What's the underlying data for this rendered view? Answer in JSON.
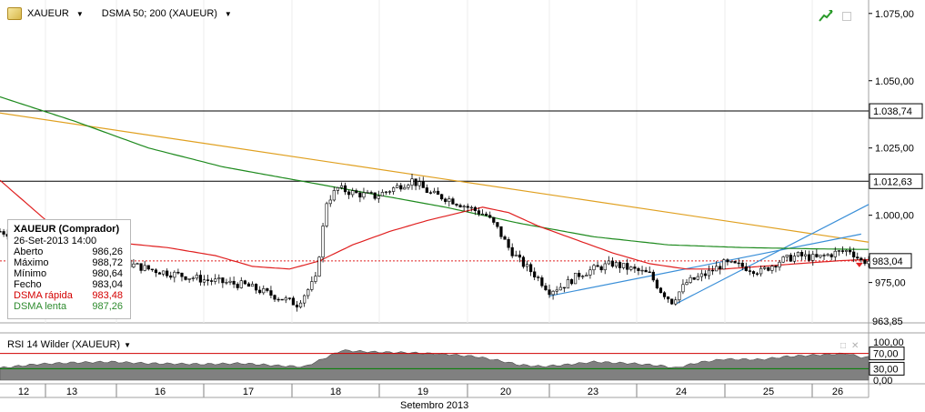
{
  "header": {
    "symbol": "XAUEUR",
    "indicator": "DSMA 50; 200 (XAUEUR)"
  },
  "info_box": {
    "title": "XAUEUR (Comprador)",
    "datetime": "26-Set-2013 14:00",
    "rows": [
      {
        "label": "Aberto",
        "value": "986,26"
      },
      {
        "label": "Máximo",
        "value": "988,72"
      },
      {
        "label": "Mínimo",
        "value": "980,64"
      },
      {
        "label": "Fecho",
        "value": "983,04"
      },
      {
        "label": "DSMA rápida",
        "value": "983,48"
      },
      {
        "label": "DSMA lenta",
        "value": "987,26"
      }
    ]
  },
  "rsi": {
    "label": "RSI 14 Wilder (XAUEUR)"
  },
  "colors": {
    "up_candle": "#ffffff",
    "down_candle": "#000000",
    "dsma_fast": "#e02020",
    "dsma_slow": "#1e8a1e",
    "trend_orange": "#e0a020",
    "trend_blue": "#3a8fd8",
    "rsi_fill": "#808080",
    "rsi_high_line": "#d00000",
    "rsi_low_line": "#008000"
  },
  "chart_data": {
    "type": "candlestick",
    "x_axis": {
      "day_labels": [
        "12",
        "13",
        "16",
        "17",
        "18",
        "19",
        "20",
        "23",
        "24",
        "25",
        "26"
      ],
      "month_label": "Setembro 2013"
    },
    "price_axis": {
      "ticks": [
        "1.075,00",
        "1.050,00",
        "1.025,00",
        "1.000,00",
        "975,00"
      ],
      "ylim": [
        960,
        1080
      ],
      "level_lines": [
        {
          "label": "1.038,74",
          "value": 1038.74
        },
        {
          "label": "1.012,63",
          "value": 1012.63
        }
      ],
      "last_price": {
        "label": "983,04",
        "value": 983.04
      },
      "bottom_label": {
        "label": "963,85",
        "value": 963.85
      }
    },
    "price_path": [
      [
        0,
        994
      ],
      [
        14,
        990
      ],
      [
        26,
        985
      ],
      [
        40,
        980
      ],
      [
        55,
        976
      ],
      [
        66,
        974
      ],
      [
        74,
        970
      ],
      [
        80,
        967
      ],
      [
        85,
        976
      ],
      [
        88,
        1005
      ],
      [
        91,
        1010
      ],
      [
        96,
        1008
      ],
      [
        101,
        1007
      ],
      [
        106,
        1010
      ],
      [
        111,
        1013
      ],
      [
        116,
        1008
      ],
      [
        121,
        1006
      ],
      [
        126,
        1003
      ],
      [
        131,
        1000
      ],
      [
        134,
        995
      ],
      [
        137,
        988
      ],
      [
        140,
        983
      ],
      [
        144,
        978
      ],
      [
        148,
        972
      ],
      [
        152,
        974
      ],
      [
        156,
        978
      ],
      [
        160,
        980
      ],
      [
        165,
        982
      ],
      [
        170,
        980
      ],
      [
        175,
        978
      ],
      [
        178,
        972
      ],
      [
        181,
        968
      ],
      [
        185,
        975
      ],
      [
        190,
        978
      ],
      [
        195,
        982
      ],
      [
        200,
        981
      ],
      [
        205,
        979
      ],
      [
        210,
        983
      ],
      [
        215,
        985
      ],
      [
        220,
        984
      ],
      [
        225,
        986
      ],
      [
        229,
        987
      ],
      [
        232,
        983
      ]
    ],
    "dsma_fast": [
      [
        0,
        1013
      ],
      [
        15,
        995
      ],
      [
        30,
        990
      ],
      [
        45,
        988
      ],
      [
        58,
        985
      ],
      [
        68,
        981
      ],
      [
        78,
        980
      ],
      [
        86,
        983
      ],
      [
        95,
        989
      ],
      [
        105,
        994
      ],
      [
        115,
        998
      ],
      [
        124,
        1001
      ],
      [
        130,
        1003
      ],
      [
        137,
        1001
      ],
      [
        145,
        996
      ],
      [
        155,
        991
      ],
      [
        165,
        986
      ],
      [
        175,
        982
      ],
      [
        185,
        980
      ],
      [
        195,
        980
      ],
      [
        205,
        981
      ],
      [
        215,
        982
      ],
      [
        225,
        983
      ],
      [
        232,
        983.5
      ]
    ],
    "dsma_slow": [
      [
        0,
        1044
      ],
      [
        20,
        1035
      ],
      [
        40,
        1025
      ],
      [
        60,
        1018
      ],
      [
        80,
        1013
      ],
      [
        100,
        1008
      ],
      [
        120,
        1003
      ],
      [
        140,
        997
      ],
      [
        160,
        992
      ],
      [
        180,
        989
      ],
      [
        200,
        988
      ],
      [
        220,
        987.5
      ],
      [
        232,
        987.3
      ]
    ],
    "trendlines": [
      {
        "color": "orange",
        "from": [
          0,
          1038
        ],
        "to": [
          234,
          990
        ]
      },
      {
        "color": "blue",
        "from": [
          148,
          970
        ],
        "to": [
          232,
          993
        ]
      },
      {
        "color": "blue",
        "from": [
          182,
          967
        ],
        "to": [
          234,
          1004
        ]
      }
    ],
    "rsi_axis": {
      "ticks": [
        "100,00",
        "70,00",
        "30,00",
        "0,00"
      ],
      "levels": [
        70,
        30
      ],
      "ylim": [
        0,
        100
      ]
    },
    "rsi_path": [
      [
        0,
        32
      ],
      [
        10,
        42
      ],
      [
        20,
        46
      ],
      [
        30,
        48
      ],
      [
        40,
        44
      ],
      [
        55,
        42
      ],
      [
        65,
        44
      ],
      [
        75,
        38
      ],
      [
        82,
        35
      ],
      [
        88,
        60
      ],
      [
        92,
        78
      ],
      [
        100,
        74
      ],
      [
        110,
        72
      ],
      [
        120,
        68
      ],
      [
        128,
        62
      ],
      [
        134,
        52
      ],
      [
        140,
        40
      ],
      [
        146,
        36
      ],
      [
        152,
        40
      ],
      [
        160,
        48
      ],
      [
        170,
        44
      ],
      [
        178,
        38
      ],
      [
        182,
        32
      ],
      [
        188,
        46
      ],
      [
        195,
        55
      ],
      [
        205,
        54
      ],
      [
        212,
        62
      ],
      [
        220,
        66
      ],
      [
        228,
        70
      ],
      [
        232,
        60
      ]
    ]
  }
}
